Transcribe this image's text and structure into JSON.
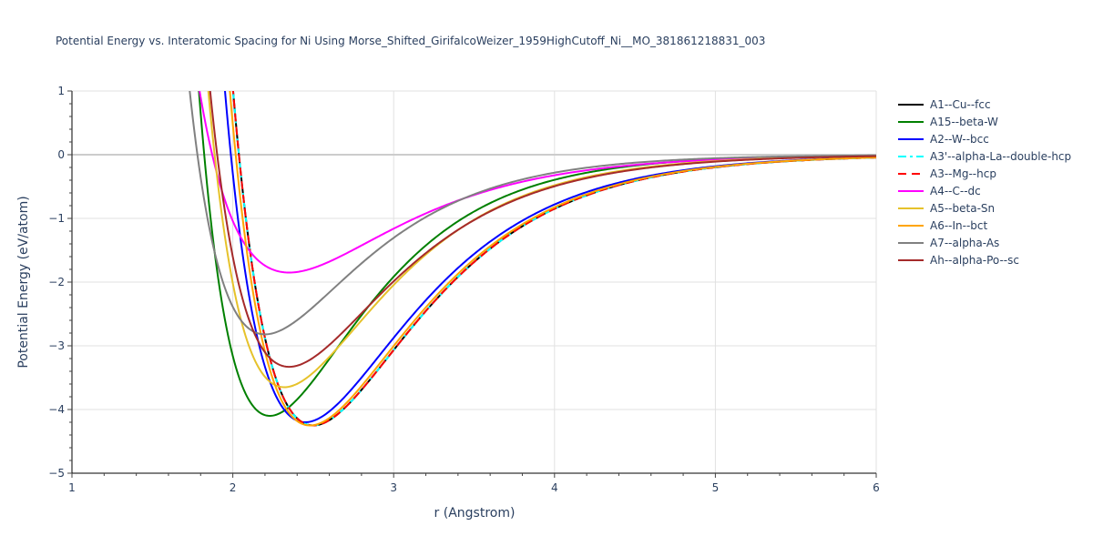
{
  "chart_data": {
    "type": "line",
    "title": "Potential Energy vs. Interatomic Spacing for Ni Using Morse_Shifted_GirifalcoWeizer_1959HighCutoff_Ni__MO_381861218831_003",
    "xlabel": "r (Angstrom)",
    "ylabel": "Potential Energy (eV/atom)",
    "xlim": [
      1,
      6
    ],
    "ylim": [
      -5,
      1
    ],
    "x_ticks": [
      "1",
      "2",
      "3",
      "4",
      "5",
      "6"
    ],
    "y_ticks": [
      "1",
      "0",
      "−1",
      "−2",
      "−3",
      "−4",
      "−5"
    ],
    "grid": true,
    "legend_position": "right",
    "series": [
      {
        "name": "A1--Cu--fcc",
        "color": "#000000",
        "dash": "solid",
        "D": 4.25,
        "r0": 2.5,
        "a": 1.5,
        "points": [
          [
            2.0,
            1.0
          ],
          [
            2.25,
            -3.0
          ],
          [
            2.5,
            -4.25
          ],
          [
            2.75,
            -3.9
          ],
          [
            3.0,
            -3.05
          ],
          [
            3.5,
            -1.75
          ],
          [
            4.0,
            -0.85
          ],
          [
            5.0,
            -0.2
          ],
          [
            6.0,
            -0.04
          ]
        ]
      },
      {
        "name": "A15--beta-W",
        "color": "#008000",
        "dash": "solid",
        "D": 4.1,
        "r0": 2.23,
        "a": 1.7,
        "points": [
          [
            1.83,
            1.0
          ],
          [
            2.0,
            -3.1
          ],
          [
            2.23,
            -4.1
          ],
          [
            2.5,
            -3.7
          ],
          [
            3.0,
            -2.0
          ],
          [
            3.5,
            -1.0
          ],
          [
            4.0,
            -0.45
          ],
          [
            5.0,
            -0.1
          ],
          [
            6.0,
            -0.02
          ]
        ]
      },
      {
        "name": "A2--W--bcc",
        "color": "#0000ff",
        "dash": "solid",
        "D": 4.2,
        "r0": 2.45,
        "a": 1.5,
        "points": [
          [
            1.97,
            1.0
          ],
          [
            2.25,
            -3.4
          ],
          [
            2.45,
            -4.2
          ],
          [
            2.75,
            -3.75
          ],
          [
            3.0,
            -2.85
          ],
          [
            3.5,
            -1.6
          ],
          [
            4.0,
            -0.8
          ],
          [
            5.0,
            -0.18
          ],
          [
            6.0,
            -0.04
          ]
        ]
      },
      {
        "name": "A3'--alpha-La--double-hcp",
        "color": "#00ffff",
        "dash": "dashdot",
        "D": 4.25,
        "r0": 2.5,
        "a": 1.5,
        "points": [
          [
            2.0,
            1.0
          ],
          [
            2.25,
            -3.0
          ],
          [
            2.5,
            -4.25
          ],
          [
            2.75,
            -3.9
          ],
          [
            3.0,
            -3.05
          ],
          [
            3.5,
            -1.75
          ],
          [
            4.0,
            -0.85
          ],
          [
            5.0,
            -0.2
          ],
          [
            6.0,
            -0.04
          ]
        ]
      },
      {
        "name": "A3--Mg--hcp",
        "color": "#ff0000",
        "dash": "dash",
        "D": 4.25,
        "r0": 2.5,
        "a": 1.5,
        "points": [
          [
            2.0,
            1.0
          ],
          [
            2.25,
            -3.0
          ],
          [
            2.5,
            -4.25
          ],
          [
            2.75,
            -3.9
          ],
          [
            3.0,
            -3.05
          ],
          [
            3.5,
            -1.75
          ],
          [
            4.0,
            -0.85
          ],
          [
            5.0,
            -0.2
          ],
          [
            6.0,
            -0.04
          ]
        ]
      },
      {
        "name": "A4--C--dc",
        "color": "#ff00ff",
        "dash": "solid",
        "D": 1.85,
        "r0": 2.35,
        "a": 1.45,
        "points": [
          [
            1.85,
            1.0
          ],
          [
            2.0,
            -1.1
          ],
          [
            2.2,
            -1.75
          ],
          [
            2.35,
            -1.85
          ],
          [
            2.6,
            -1.65
          ],
          [
            3.0,
            -1.1
          ],
          [
            3.5,
            -0.6
          ],
          [
            4.0,
            -0.3
          ],
          [
            5.0,
            -0.08
          ],
          [
            6.0,
            -0.02
          ]
        ]
      },
      {
        "name": "A5--beta-Sn",
        "color": "#e6c22b",
        "dash": "solid",
        "D": 3.65,
        "r0": 2.32,
        "a": 1.6,
        "points": [
          [
            1.9,
            1.0
          ],
          [
            2.1,
            -2.6
          ],
          [
            2.32,
            -3.65
          ],
          [
            2.6,
            -3.3
          ],
          [
            3.0,
            -2.0
          ],
          [
            3.5,
            -1.0
          ],
          [
            4.0,
            -0.45
          ],
          [
            5.0,
            -0.1
          ],
          [
            6.0,
            -0.02
          ]
        ]
      },
      {
        "name": "A6--In--bct",
        "color": "#ffa500",
        "dash": "solid",
        "D": 4.25,
        "r0": 2.48,
        "a": 1.5,
        "points": [
          [
            1.99,
            1.0
          ],
          [
            2.25,
            -3.2
          ],
          [
            2.48,
            -4.25
          ],
          [
            2.75,
            -3.85
          ],
          [
            3.0,
            -2.95
          ],
          [
            3.5,
            -1.65
          ],
          [
            4.0,
            -0.83
          ],
          [
            5.0,
            -0.19
          ],
          [
            6.0,
            -0.04
          ]
        ]
      },
      {
        "name": "A7--alpha-As",
        "color": "#808080",
        "dash": "solid",
        "D": 2.82,
        "r0": 2.2,
        "a": 1.65,
        "points": [
          [
            1.75,
            1.0
          ],
          [
            2.0,
            -2.3
          ],
          [
            2.2,
            -2.82
          ],
          [
            2.5,
            -2.5
          ],
          [
            3.0,
            -1.35
          ],
          [
            3.5,
            -0.65
          ],
          [
            4.0,
            -0.3
          ],
          [
            5.0,
            -0.07
          ],
          [
            6.0,
            -0.02
          ]
        ]
      },
      {
        "name": "Ah--alpha-Po--sc",
        "color": "#a52a2a",
        "dash": "solid",
        "D": 3.33,
        "r0": 2.35,
        "a": 1.55,
        "points": [
          [
            1.95,
            1.0
          ],
          [
            2.15,
            -2.6
          ],
          [
            2.35,
            -3.33
          ],
          [
            2.6,
            -3.05
          ],
          [
            3.0,
            -1.95
          ],
          [
            3.5,
            -1.0
          ],
          [
            4.0,
            -0.5
          ],
          [
            5.0,
            -0.12
          ],
          [
            6.0,
            -0.03
          ]
        ]
      }
    ]
  }
}
